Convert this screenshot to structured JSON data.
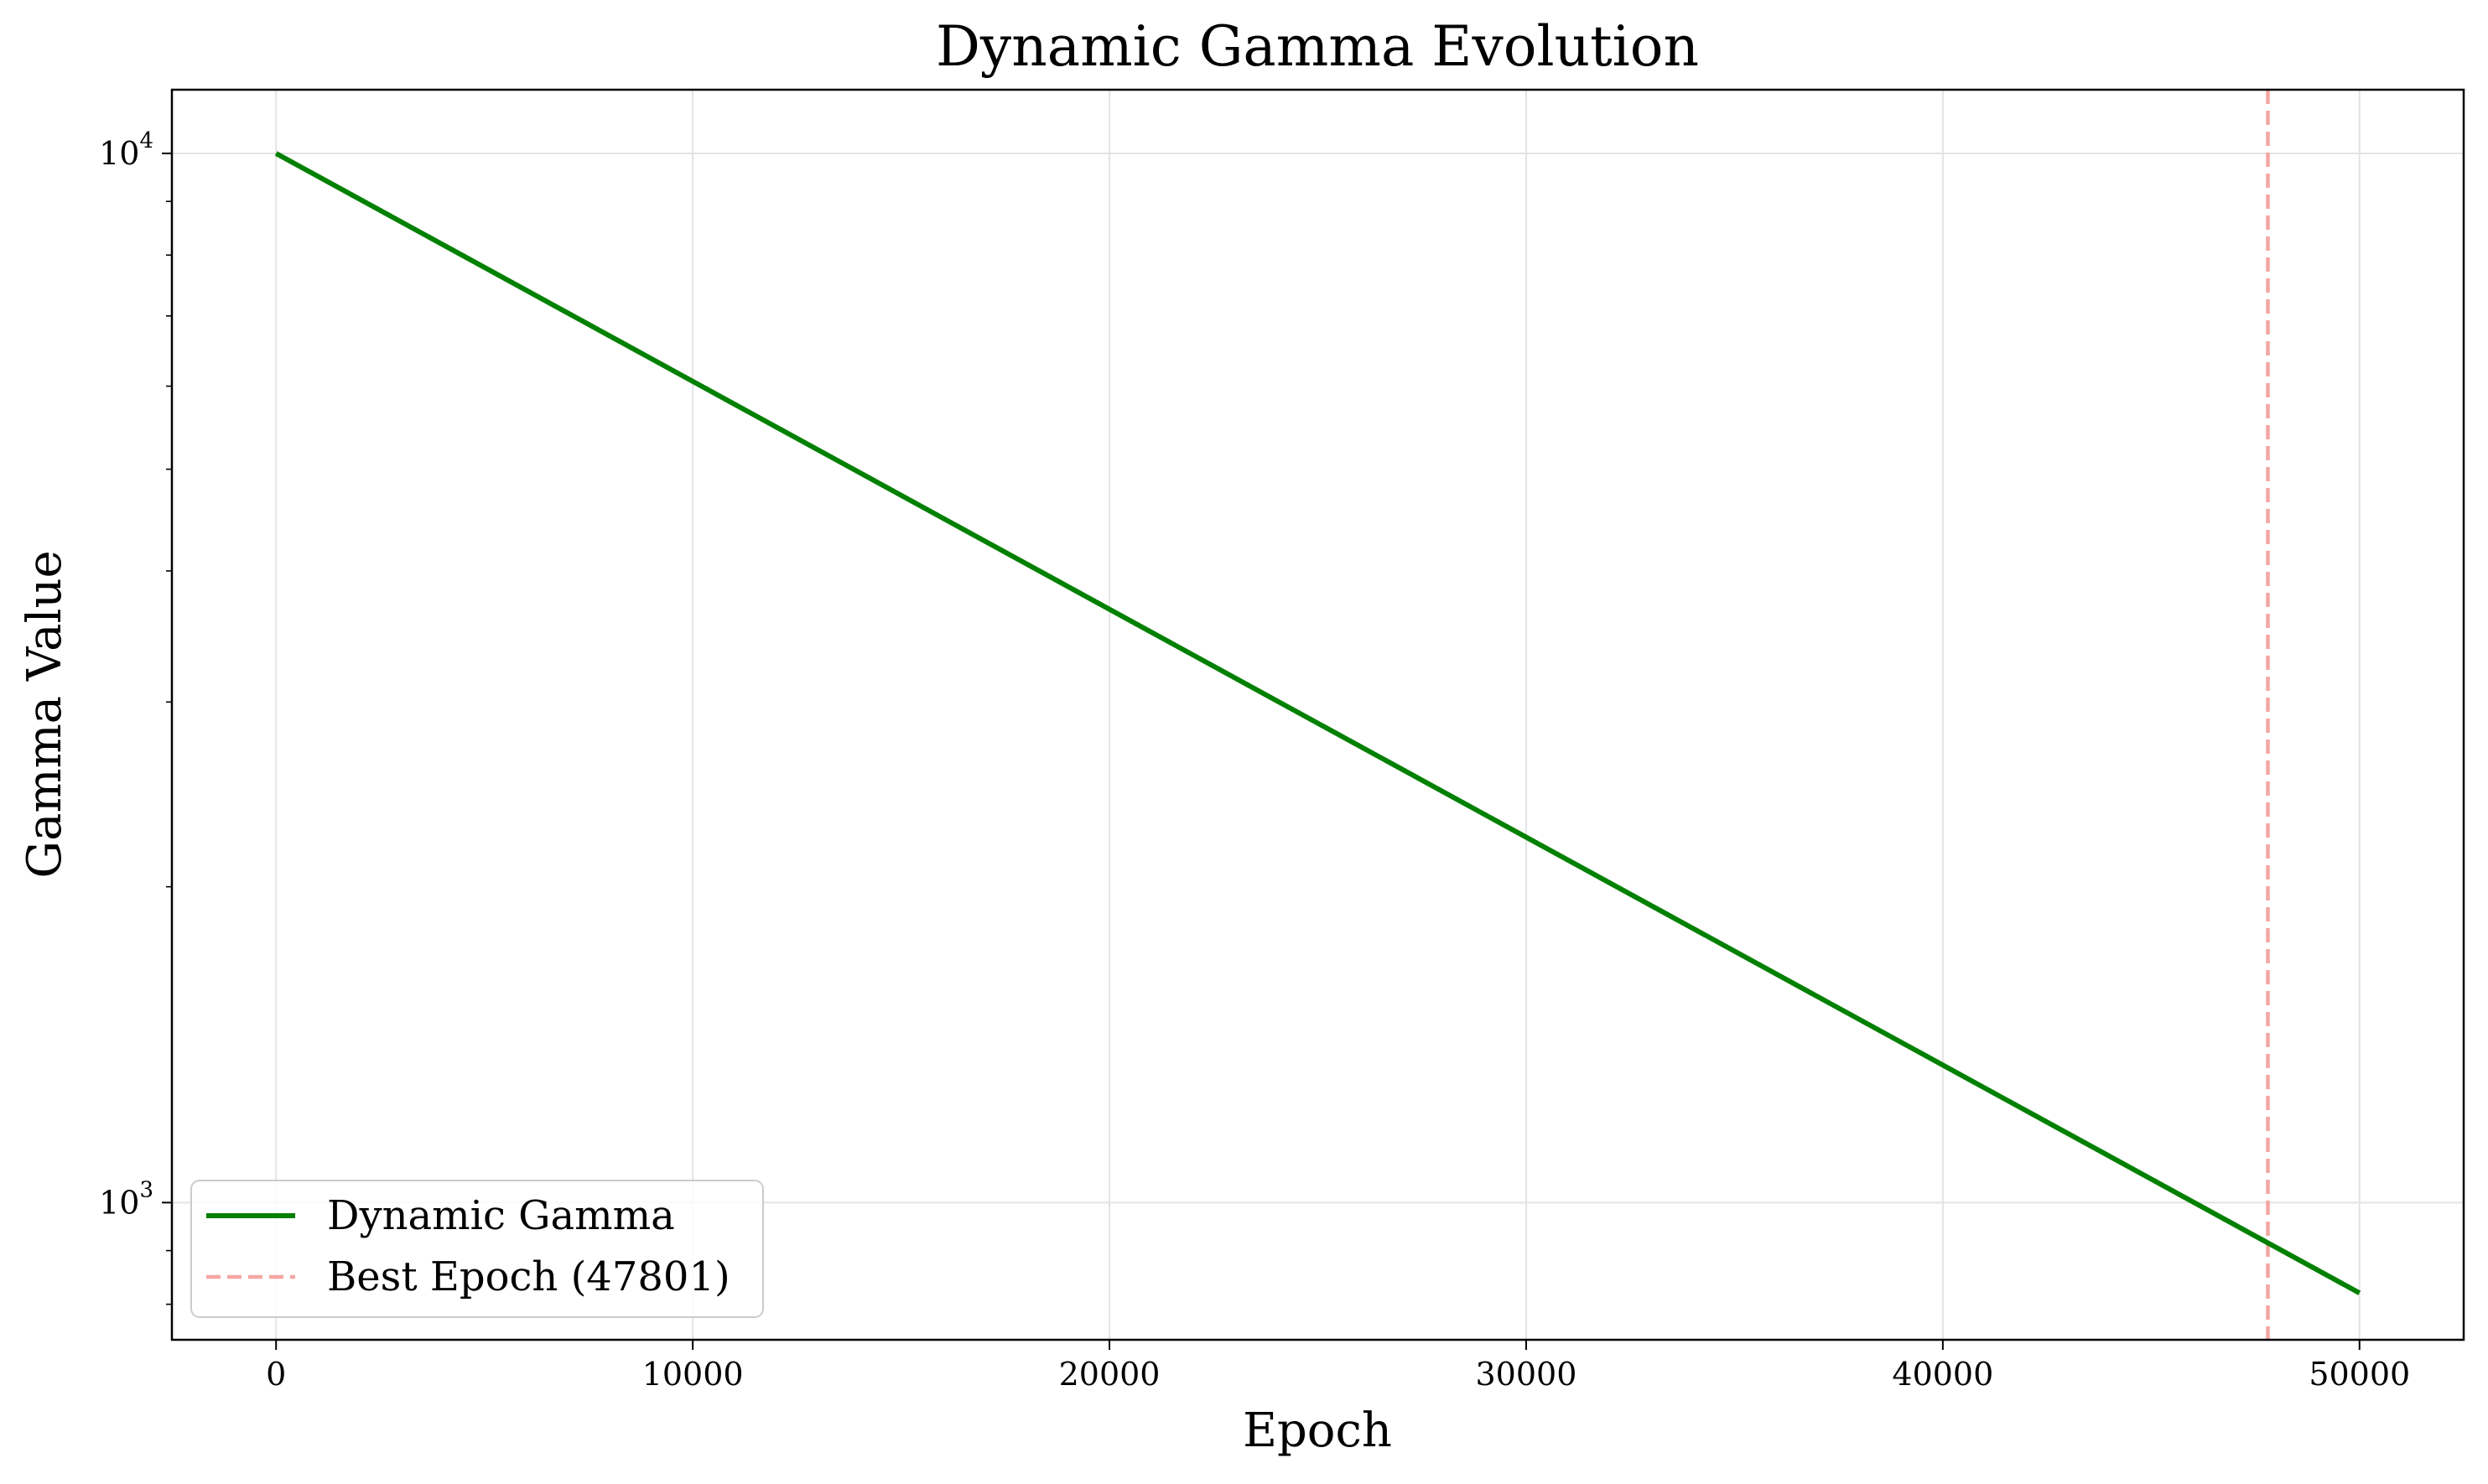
{
  "chart_data": {
    "type": "line",
    "title": "Dynamic Gamma Evolution",
    "xlabel": "Epoch",
    "ylabel": "Gamma Value",
    "xlim": [
      -2500,
      52500
    ],
    "ylim": [
      740,
      11500
    ],
    "yscale": "log",
    "grid": true,
    "legend_position": "lower-left",
    "x_ticks": [
      {
        "value": 0,
        "label": "0"
      },
      {
        "value": 10000,
        "label": "10000"
      },
      {
        "value": 20000,
        "label": "20000"
      },
      {
        "value": 30000,
        "label": "30000"
      },
      {
        "value": 40000,
        "label": "40000"
      },
      {
        "value": 50000,
        "label": "50000"
      }
    ],
    "y_ticks": [
      {
        "value": 1000,
        "base": "10",
        "exp": "3"
      },
      {
        "value": 10000,
        "base": "10",
        "exp": "4"
      }
    ],
    "y_minor_ticks": [
      800,
      900,
      2000,
      3000,
      4000,
      5000,
      6000,
      7000,
      8000,
      9000
    ],
    "series": [
      {
        "name": "Dynamic Gamma",
        "color": "#008000",
        "style": "solid",
        "x": [
          0,
          50000
        ],
        "y": [
          10000,
          820
        ]
      }
    ],
    "annotations": [
      {
        "type": "vline",
        "name": "Best Epoch (47801)",
        "x": 47801,
        "color": "#f4a6a2",
        "style": "dashed"
      }
    ]
  }
}
